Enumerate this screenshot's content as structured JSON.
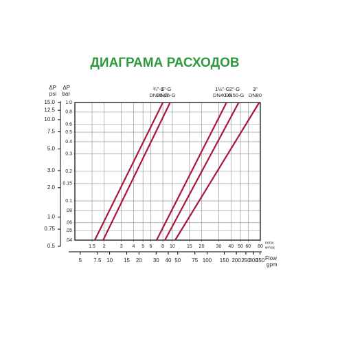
{
  "chart_data": {
    "type": "line",
    "title": "ДИАГРАМА РАСХОДОВ",
    "y_label_symbol": "ΔP",
    "y_label_unit": "bar",
    "y2_label_symbol": "ΔP",
    "y2_label_unit": "psi",
    "x_label_ru": "поток",
    "x_label_unit": "м³/час",
    "x2_label": "Flow",
    "x2_label_unit": "gpm",
    "log_x": true,
    "log_y": true,
    "grid": true,
    "xlim": [
      1,
      80
    ],
    "xticks": [
      1.5,
      2,
      3,
      4,
      5,
      6,
      8,
      10,
      15,
      20,
      30,
      40,
      50,
      60,
      80
    ],
    "x2lim": [
      4.4,
      352
    ],
    "x2ticks": [
      5,
      7.5,
      10,
      15,
      20,
      30,
      40,
      50,
      75,
      100,
      150,
      200,
      250,
      300,
      350
    ],
    "ylim": [
      0.04,
      1
    ],
    "yticks": [
      {
        "value": 1,
        "label": "1.0"
      },
      0.8,
      0.6,
      0.5,
      0.4,
      0.3,
      0.2,
      0.15,
      0.1,
      {
        "value": 0.08,
        "label": ".08"
      },
      {
        "value": 0.06,
        "label": ".06"
      },
      {
        "value": 0.05,
        "label": ".05"
      },
      {
        "value": 0.04,
        "label": ".04"
      }
    ],
    "y2lim": [
      0.5,
      15
    ],
    "y2ticks": [
      {
        "value": 15,
        "label": "15.0"
      },
      12.5,
      {
        "value": 10,
        "label": "10.0"
      },
      7.5,
      {
        "value": 5,
        "label": "5.0"
      },
      {
        "value": 3,
        "label": "3.0"
      },
      {
        "value": 2,
        "label": "2.0"
      },
      {
        "value": 1,
        "label": "1.0"
      },
      0.75,
      0.5
    ],
    "series": [
      {
        "name": "¾\"-G",
        "dn": "DN20-G",
        "color": "#a8173a",
        "x": [
          1.6,
          8
        ],
        "values": [
          0.04,
          1
        ]
      },
      {
        "name": "1\"-G",
        "dn": "DN25-G",
        "color": "#a8173a",
        "x": [
          1.95,
          9.5
        ],
        "values": [
          0.04,
          1
        ]
      },
      {
        "name": "1½\"-G",
        "dn": "DN40-G",
        "color": "#a8173a",
        "x": [
          6.9,
          36
        ],
        "values": [
          0.04,
          1
        ]
      },
      {
        "name": "2\"-G",
        "dn": "DN50-G",
        "color": "#a8173a",
        "x": [
          8.4,
          48
        ],
        "values": [
          0.04,
          1
        ]
      },
      {
        "name": "3\"",
        "dn": "DN80",
        "color": "#a8173a",
        "x": [
          10.7,
          78
        ],
        "values": [
          0.04,
          1
        ]
      }
    ]
  }
}
